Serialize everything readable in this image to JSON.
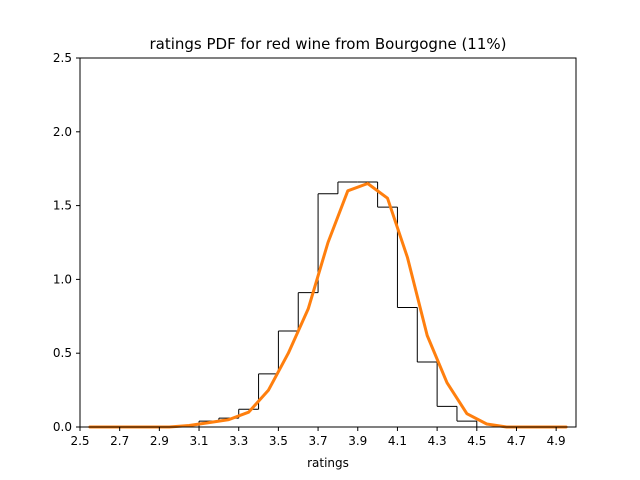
{
  "chart_data": {
    "type": "line",
    "title": "ratings PDF for red wine from Bourgogne (11%)",
    "xlabel": "ratings",
    "ylabel": "",
    "xlim": [
      2.5,
      5.0
    ],
    "ylim": [
      0,
      2.5
    ],
    "x_ticks": [
      "2.5",
      "2.7",
      "2.9",
      "3.1",
      "3.3",
      "3.5",
      "3.7",
      "3.9",
      "4.1",
      "4.3",
      "4.5",
      "4.7",
      "4.9"
    ],
    "y_ticks": [
      "0.0",
      "0.5",
      "1.0",
      "1.5",
      "2.0",
      "2.5"
    ],
    "grid": false,
    "series": [
      {
        "kind": "step-histogram",
        "color": "#000000",
        "bins": [
          3.1,
          3.2,
          3.3,
          3.4,
          3.5,
          3.6,
          3.7,
          3.8,
          3.9,
          4.0,
          4.1,
          4.2,
          4.3,
          4.4,
          4.5
        ],
        "values": [
          0.04,
          0.06,
          0.12,
          0.36,
          0.65,
          0.91,
          1.58,
          1.66,
          1.66,
          1.49,
          0.81,
          0.44,
          0.14,
          0.04
        ]
      },
      {
        "kind": "density-line",
        "color": "#ff7f0e",
        "x": [
          2.55,
          2.65,
          2.75,
          2.85,
          2.95,
          3.05,
          3.15,
          3.25,
          3.35,
          3.45,
          3.55,
          3.65,
          3.75,
          3.85,
          3.95,
          4.05,
          4.15,
          4.25,
          4.35,
          4.45,
          4.55,
          4.65,
          4.75,
          4.85,
          4.95
        ],
        "y": [
          0.0,
          0.0,
          0.0,
          0.0,
          0.0,
          0.01,
          0.03,
          0.05,
          0.1,
          0.25,
          0.5,
          0.8,
          1.25,
          1.6,
          1.65,
          1.55,
          1.15,
          0.62,
          0.3,
          0.09,
          0.02,
          0.0,
          0.0,
          0.0,
          0.0
        ]
      }
    ]
  }
}
